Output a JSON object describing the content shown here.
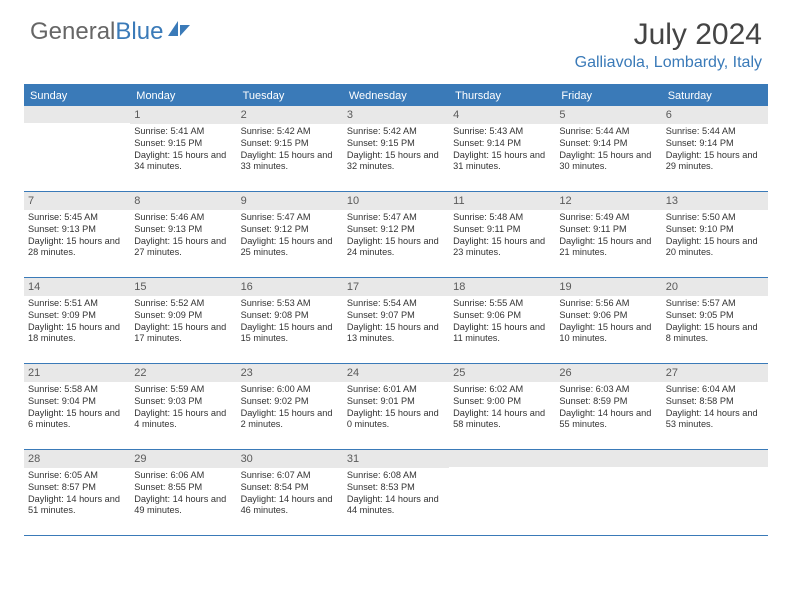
{
  "logo": {
    "text1": "General",
    "text2": "Blue"
  },
  "title": "July 2024",
  "location": "Galliavola, Lombardy, Italy",
  "weekdays": [
    "Sunday",
    "Monday",
    "Tuesday",
    "Wednesday",
    "Thursday",
    "Friday",
    "Saturday"
  ],
  "colors": {
    "header_blue": "#3a7ab8",
    "daynum_bg": "#e8e8e8",
    "text_gray": "#666666"
  },
  "grid_start_offset": 1,
  "days": [
    {
      "n": 1,
      "sunrise": "5:41 AM",
      "sunset": "9:15 PM",
      "daylight": "15 hours and 34 minutes."
    },
    {
      "n": 2,
      "sunrise": "5:42 AM",
      "sunset": "9:15 PM",
      "daylight": "15 hours and 33 minutes."
    },
    {
      "n": 3,
      "sunrise": "5:42 AM",
      "sunset": "9:15 PM",
      "daylight": "15 hours and 32 minutes."
    },
    {
      "n": 4,
      "sunrise": "5:43 AM",
      "sunset": "9:14 PM",
      "daylight": "15 hours and 31 minutes."
    },
    {
      "n": 5,
      "sunrise": "5:44 AM",
      "sunset": "9:14 PM",
      "daylight": "15 hours and 30 minutes."
    },
    {
      "n": 6,
      "sunrise": "5:44 AM",
      "sunset": "9:14 PM",
      "daylight": "15 hours and 29 minutes."
    },
    {
      "n": 7,
      "sunrise": "5:45 AM",
      "sunset": "9:13 PM",
      "daylight": "15 hours and 28 minutes."
    },
    {
      "n": 8,
      "sunrise": "5:46 AM",
      "sunset": "9:13 PM",
      "daylight": "15 hours and 27 minutes."
    },
    {
      "n": 9,
      "sunrise": "5:47 AM",
      "sunset": "9:12 PM",
      "daylight": "15 hours and 25 minutes."
    },
    {
      "n": 10,
      "sunrise": "5:47 AM",
      "sunset": "9:12 PM",
      "daylight": "15 hours and 24 minutes."
    },
    {
      "n": 11,
      "sunrise": "5:48 AM",
      "sunset": "9:11 PM",
      "daylight": "15 hours and 23 minutes."
    },
    {
      "n": 12,
      "sunrise": "5:49 AM",
      "sunset": "9:11 PM",
      "daylight": "15 hours and 21 minutes."
    },
    {
      "n": 13,
      "sunrise": "5:50 AM",
      "sunset": "9:10 PM",
      "daylight": "15 hours and 20 minutes."
    },
    {
      "n": 14,
      "sunrise": "5:51 AM",
      "sunset": "9:09 PM",
      "daylight": "15 hours and 18 minutes."
    },
    {
      "n": 15,
      "sunrise": "5:52 AM",
      "sunset": "9:09 PM",
      "daylight": "15 hours and 17 minutes."
    },
    {
      "n": 16,
      "sunrise": "5:53 AM",
      "sunset": "9:08 PM",
      "daylight": "15 hours and 15 minutes."
    },
    {
      "n": 17,
      "sunrise": "5:54 AM",
      "sunset": "9:07 PM",
      "daylight": "15 hours and 13 minutes."
    },
    {
      "n": 18,
      "sunrise": "5:55 AM",
      "sunset": "9:06 PM",
      "daylight": "15 hours and 11 minutes."
    },
    {
      "n": 19,
      "sunrise": "5:56 AM",
      "sunset": "9:06 PM",
      "daylight": "15 hours and 10 minutes."
    },
    {
      "n": 20,
      "sunrise": "5:57 AM",
      "sunset": "9:05 PM",
      "daylight": "15 hours and 8 minutes."
    },
    {
      "n": 21,
      "sunrise": "5:58 AM",
      "sunset": "9:04 PM",
      "daylight": "15 hours and 6 minutes."
    },
    {
      "n": 22,
      "sunrise": "5:59 AM",
      "sunset": "9:03 PM",
      "daylight": "15 hours and 4 minutes."
    },
    {
      "n": 23,
      "sunrise": "6:00 AM",
      "sunset": "9:02 PM",
      "daylight": "15 hours and 2 minutes."
    },
    {
      "n": 24,
      "sunrise": "6:01 AM",
      "sunset": "9:01 PM",
      "daylight": "15 hours and 0 minutes."
    },
    {
      "n": 25,
      "sunrise": "6:02 AM",
      "sunset": "9:00 PM",
      "daylight": "14 hours and 58 minutes."
    },
    {
      "n": 26,
      "sunrise": "6:03 AM",
      "sunset": "8:59 PM",
      "daylight": "14 hours and 55 minutes."
    },
    {
      "n": 27,
      "sunrise": "6:04 AM",
      "sunset": "8:58 PM",
      "daylight": "14 hours and 53 minutes."
    },
    {
      "n": 28,
      "sunrise": "6:05 AM",
      "sunset": "8:57 PM",
      "daylight": "14 hours and 51 minutes."
    },
    {
      "n": 29,
      "sunrise": "6:06 AM",
      "sunset": "8:55 PM",
      "daylight": "14 hours and 49 minutes."
    },
    {
      "n": 30,
      "sunrise": "6:07 AM",
      "sunset": "8:54 PM",
      "daylight": "14 hours and 46 minutes."
    },
    {
      "n": 31,
      "sunrise": "6:08 AM",
      "sunset": "8:53 PM",
      "daylight": "14 hours and 44 minutes."
    }
  ]
}
